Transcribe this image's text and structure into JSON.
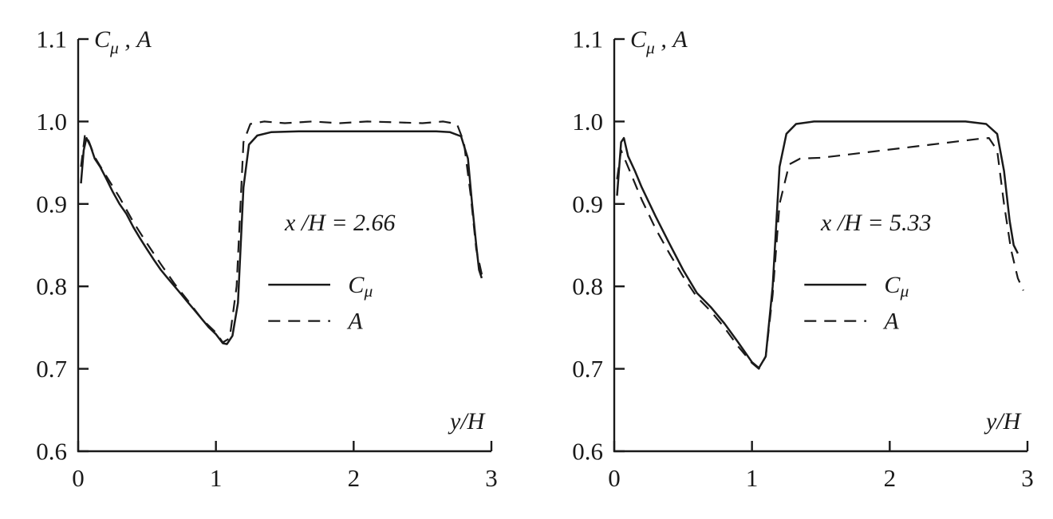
{
  "page": {
    "ink": "#1a1a1a",
    "background": "#ffffff"
  },
  "chart_data": [
    {
      "type": "line",
      "title_label": "C_{μ} , A",
      "x_label": "y/H",
      "annotation": "x /H = 2.66",
      "xlim": [
        0,
        3
      ],
      "ylim": [
        0.6,
        1.1
      ],
      "grid": false,
      "legend_position": "inside-right",
      "x_ticks": [
        {
          "v": 0,
          "label": "0"
        },
        {
          "v": 1,
          "label": "1"
        },
        {
          "v": 2,
          "label": "2"
        },
        {
          "v": 3,
          "label": "3"
        }
      ],
      "y_ticks": [
        {
          "v": 0.6,
          "label": "0.6"
        },
        {
          "v": 0.7,
          "label": "0.7"
        },
        {
          "v": 0.8,
          "label": "0.8"
        },
        {
          "v": 0.9,
          "label": "0.9"
        },
        {
          "v": 1.0,
          "label": "1.0"
        },
        {
          "v": 1.1,
          "label": "1.1"
        }
      ],
      "annotation_pos": [
        1.5,
        0.868
      ],
      "x_label_pos": [
        2.95,
        0.627
      ],
      "legend_pos": [
        1.38,
        0.802
      ],
      "legend_dy": 0.044,
      "legend": [
        {
          "label": "C_{μ}",
          "style": "solid"
        },
        {
          "label": "A",
          "style": "dashed"
        }
      ],
      "series": [
        {
          "name": "Cμ",
          "style": "solid",
          "points": [
            [
              0.02,
              0.925
            ],
            [
              0.04,
              0.965
            ],
            [
              0.06,
              0.98
            ],
            [
              0.09,
              0.97
            ],
            [
              0.12,
              0.955
            ],
            [
              0.16,
              0.945
            ],
            [
              0.2,
              0.932
            ],
            [
              0.25,
              0.915
            ],
            [
              0.3,
              0.9
            ],
            [
              0.35,
              0.888
            ],
            [
              0.4,
              0.872
            ],
            [
              0.45,
              0.858
            ],
            [
              0.5,
              0.845
            ],
            [
              0.55,
              0.832
            ],
            [
              0.6,
              0.82
            ],
            [
              0.65,
              0.81
            ],
            [
              0.7,
              0.8
            ],
            [
              0.75,
              0.79
            ],
            [
              0.8,
              0.78
            ],
            [
              0.85,
              0.77
            ],
            [
              0.9,
              0.76
            ],
            [
              0.95,
              0.75
            ],
            [
              1.0,
              0.742
            ],
            [
              1.05,
              0.731
            ],
            [
              1.08,
              0.73
            ],
            [
              1.12,
              0.74
            ],
            [
              1.16,
              0.78
            ],
            [
              1.2,
              0.92
            ],
            [
              1.24,
              0.972
            ],
            [
              1.3,
              0.983
            ],
            [
              1.4,
              0.987
            ],
            [
              1.6,
              0.988
            ],
            [
              1.8,
              0.988
            ],
            [
              2.0,
              0.988
            ],
            [
              2.2,
              0.988
            ],
            [
              2.4,
              0.988
            ],
            [
              2.6,
              0.988
            ],
            [
              2.7,
              0.987
            ],
            [
              2.78,
              0.982
            ],
            [
              2.83,
              0.955
            ],
            [
              2.86,
              0.9
            ],
            [
              2.89,
              0.85
            ],
            [
              2.91,
              0.82
            ],
            [
              2.93,
              0.81
            ]
          ]
        },
        {
          "name": "A",
          "style": "dashed",
          "points": [
            [
              0.02,
              0.945
            ],
            [
              0.05,
              0.985
            ],
            [
              0.08,
              0.975
            ],
            [
              0.12,
              0.957
            ],
            [
              0.2,
              0.935
            ],
            [
              0.3,
              0.908
            ],
            [
              0.4,
              0.878
            ],
            [
              0.5,
              0.852
            ],
            [
              0.6,
              0.827
            ],
            [
              0.7,
              0.803
            ],
            [
              0.8,
              0.782
            ],
            [
              0.9,
              0.76
            ],
            [
              1.0,
              0.744
            ],
            [
              1.05,
              0.732
            ],
            [
              1.1,
              0.737
            ],
            [
              1.15,
              0.8
            ],
            [
              1.2,
              0.975
            ],
            [
              1.25,
              0.997
            ],
            [
              1.35,
              1.0
            ],
            [
              1.5,
              0.998
            ],
            [
              1.7,
              1.0
            ],
            [
              1.9,
              0.998
            ],
            [
              2.1,
              1.0
            ],
            [
              2.3,
              0.999
            ],
            [
              2.5,
              0.998
            ],
            [
              2.65,
              1.0
            ],
            [
              2.75,
              0.997
            ],
            [
              2.8,
              0.975
            ],
            [
              2.85,
              0.91
            ],
            [
              2.89,
              0.845
            ],
            [
              2.93,
              0.815
            ],
            [
              2.96,
              0.81
            ]
          ]
        }
      ]
    },
    {
      "type": "line",
      "title_label": "C_{μ} , A",
      "x_label": "y/H",
      "annotation": "x /H = 5.33",
      "xlim": [
        0,
        3
      ],
      "ylim": [
        0.6,
        1.1
      ],
      "grid": false,
      "legend_position": "inside-right",
      "x_ticks": [
        {
          "v": 0,
          "label": "0"
        },
        {
          "v": 1,
          "label": "1"
        },
        {
          "v": 2,
          "label": "2"
        },
        {
          "v": 3,
          "label": "3"
        }
      ],
      "y_ticks": [
        {
          "v": 0.6,
          "label": "0.6"
        },
        {
          "v": 0.7,
          "label": "0.7"
        },
        {
          "v": 0.8,
          "label": "0.8"
        },
        {
          "v": 0.9,
          "label": "0.9"
        },
        {
          "v": 1.0,
          "label": "1.0"
        },
        {
          "v": 1.1,
          "label": "1.1"
        }
      ],
      "annotation_pos": [
        1.5,
        0.868
      ],
      "x_label_pos": [
        2.95,
        0.627
      ],
      "legend_pos": [
        1.38,
        0.802
      ],
      "legend_dy": 0.044,
      "legend": [
        {
          "label": "C_{μ}",
          "style": "solid"
        },
        {
          "label": "A",
          "style": "dashed"
        }
      ],
      "series": [
        {
          "name": "Cμ",
          "style": "solid",
          "points": [
            [
              0.02,
              0.91
            ],
            [
              0.05,
              0.975
            ],
            [
              0.07,
              0.98
            ],
            [
              0.1,
              0.958
            ],
            [
              0.15,
              0.94
            ],
            [
              0.2,
              0.92
            ],
            [
              0.3,
              0.885
            ],
            [
              0.4,
              0.852
            ],
            [
              0.5,
              0.82
            ],
            [
              0.6,
              0.792
            ],
            [
              0.7,
              0.775
            ],
            [
              0.8,
              0.755
            ],
            [
              0.9,
              0.732
            ],
            [
              1.0,
              0.708
            ],
            [
              1.05,
              0.701
            ],
            [
              1.1,
              0.715
            ],
            [
              1.15,
              0.8
            ],
            [
              1.2,
              0.945
            ],
            [
              1.25,
              0.985
            ],
            [
              1.32,
              0.997
            ],
            [
              1.45,
              1.0
            ],
            [
              1.7,
              1.0
            ],
            [
              2.0,
              1.0
            ],
            [
              2.3,
              1.0
            ],
            [
              2.55,
              1.0
            ],
            [
              2.7,
              0.997
            ],
            [
              2.78,
              0.985
            ],
            [
              2.83,
              0.94
            ],
            [
              2.87,
              0.88
            ],
            [
              2.9,
              0.85
            ],
            [
              2.93,
              0.84
            ]
          ]
        },
        {
          "name": "A",
          "style": "dashed",
          "points": [
            [
              0.02,
              0.93
            ],
            [
              0.05,
              0.965
            ],
            [
              0.1,
              0.945
            ],
            [
              0.2,
              0.905
            ],
            [
              0.3,
              0.87
            ],
            [
              0.4,
              0.84
            ],
            [
              0.5,
              0.812
            ],
            [
              0.6,
              0.787
            ],
            [
              0.7,
              0.77
            ],
            [
              0.8,
              0.75
            ],
            [
              0.9,
              0.727
            ],
            [
              1.0,
              0.707
            ],
            [
              1.05,
              0.7
            ],
            [
              1.1,
              0.715
            ],
            [
              1.15,
              0.79
            ],
            [
              1.2,
              0.9
            ],
            [
              1.27,
              0.948
            ],
            [
              1.35,
              0.955
            ],
            [
              1.5,
              0.956
            ],
            [
              1.7,
              0.96
            ],
            [
              1.9,
              0.964
            ],
            [
              2.1,
              0.968
            ],
            [
              2.3,
              0.972
            ],
            [
              2.5,
              0.976
            ],
            [
              2.65,
              0.979
            ],
            [
              2.72,
              0.98
            ],
            [
              2.78,
              0.965
            ],
            [
              2.83,
              0.9
            ],
            [
              2.88,
              0.845
            ],
            [
              2.93,
              0.81
            ],
            [
              2.97,
              0.795
            ]
          ]
        }
      ]
    }
  ]
}
